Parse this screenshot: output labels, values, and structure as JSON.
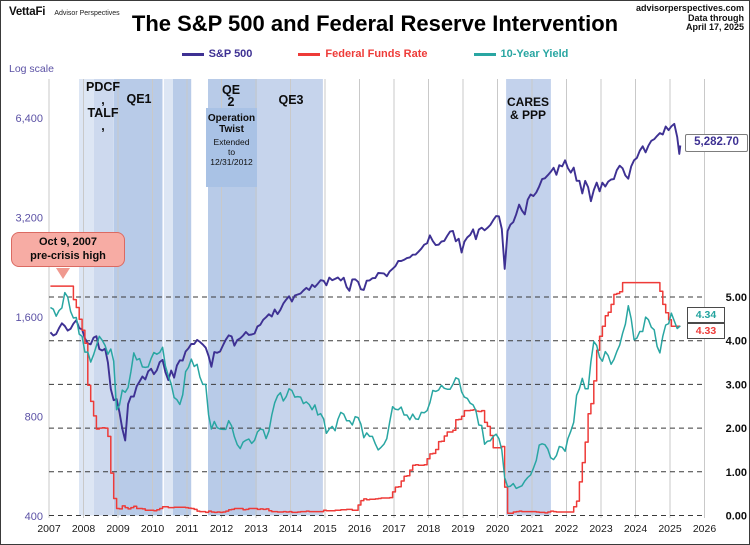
{
  "header": {
    "brand": "VettaFi",
    "brand_sub": "Advisor Perspectives",
    "attribution_line1": "advisorperspectives.com",
    "attribution_line2": "Data through",
    "attribution_line3": "April 17, 2025"
  },
  "annotations": {
    "precrisis_callout": "Oct 9, 2007\npre-crisis high",
    "sp_last_label": "5,282.70",
    "y10_last_label": "4.34",
    "ffr_last_label": "4.33",
    "pdcf_talf": "PDCF\n,\nTALF\n,",
    "qe1": "QE1",
    "qe2": "QE\n2",
    "qe3": "QE3",
    "cares": "CARES\n& PPP",
    "optwist_title": "Operation\nTwist",
    "optwist_sub": "Extended\nto\n12/31/2012"
  },
  "chart_data": {
    "type": "line",
    "title": "The S&P 500 and Federal Reserve Intervention",
    "left_axis": {
      "label": "Log scale",
      "scale": "log",
      "range": [
        400,
        8300
      ],
      "ticks": [
        [
          400,
          "400"
        ],
        [
          800,
          "800"
        ],
        [
          1600,
          "1,600"
        ],
        [
          3200,
          "3,200"
        ],
        [
          6400,
          "6,400"
        ]
      ]
    },
    "right_axis": {
      "range": [
        0.0,
        5.5
      ],
      "ticks": [
        [
          0,
          "0.00"
        ],
        [
          1,
          "1.00"
        ],
        [
          2,
          "2.00"
        ],
        [
          3,
          "3.00"
        ],
        [
          4,
          "4.00"
        ],
        [
          5,
          "5.00"
        ]
      ]
    },
    "x_axis": {
      "years": [
        2007,
        2008,
        2009,
        2010,
        2011,
        2012,
        2013,
        2014,
        2015,
        2016,
        2017,
        2018,
        2019,
        2020,
        2021,
        2022,
        2023,
        2024,
        2025,
        2026
      ]
    },
    "bands": [
      {
        "name": "pdcf-talf-early",
        "from": 2007.87,
        "to": 2008.3,
        "color": "#dde6f4"
      },
      {
        "name": "pdcf-talf-late",
        "from": 2008.3,
        "to": 2008.88,
        "color": "#cdd9ee"
      },
      {
        "name": "qe1",
        "from": 2008.88,
        "to": 2010.29,
        "color": "#b8cbe8"
      },
      {
        "name": "qe2-announce",
        "from": 2010.33,
        "to": 2010.59,
        "color": "#dde6f4"
      },
      {
        "name": "qe2",
        "from": 2010.59,
        "to": 2011.12,
        "color": "#b8cbe8"
      },
      {
        "name": "qe3",
        "from": 2012.71,
        "to": 2014.94,
        "color": "#c6d4ec"
      },
      {
        "name": "operation-twist",
        "from": 2011.61,
        "to": 2013.03,
        "color": "#b8cbe8"
      },
      {
        "name": "cares-ppp",
        "from": 2020.25,
        "to": 2021.55,
        "color": "#c3d2ec"
      }
    ],
    "series": [
      {
        "name": "S&P 500",
        "color": "#3e3193",
        "axis": "left",
        "step": false,
        "start": 2007,
        "monthly": [
          1438,
          1407,
          1421,
          1482,
          1531,
          1503,
          1455,
          1474,
          1527,
          1565,
          1481,
          1468,
          1379,
          1331,
          1323,
          1386,
          1400,
          1280,
          1267,
          1283,
          1166,
          969,
          896,
          903,
          826,
          735,
          677,
          873,
          919,
          919,
          987,
          1021,
          1057,
          1036,
          1096,
          1115,
          1074,
          1104,
          1169,
          1187,
          1089,
          1031,
          1102,
          1049,
          1141,
          1183,
          1181,
          1258,
          1286,
          1327,
          1326,
          1364,
          1345,
          1321,
          1292,
          1219,
          1131,
          1253,
          1247,
          1258,
          1312,
          1366,
          1408,
          1398,
          1310,
          1362,
          1379,
          1407,
          1441,
          1412,
          1416,
          1426,
          1498,
          1515,
          1569,
          1598,
          1631,
          1606,
          1686,
          1633,
          1682,
          1757,
          1806,
          1848,
          1783,
          1859,
          1872,
          1884,
          1924,
          1960,
          1931,
          2003,
          1972,
          2018,
          2068,
          2059,
          1995,
          2105,
          2068,
          2086,
          2107,
          2063,
          2104,
          1972,
          1920,
          2079,
          2080,
          2044,
          1940,
          1932,
          2060,
          2065,
          2097,
          2099,
          2174,
          2171,
          2168,
          2126,
          2199,
          2239,
          2279,
          2364,
          2363,
          2384,
          2412,
          2423,
          2470,
          2472,
          2519,
          2575,
          2648,
          2674,
          2824,
          2714,
          2641,
          2648,
          2705,
          2718,
          2816,
          2902,
          2914,
          2712,
          2760,
          2507,
          2704,
          2785,
          2834,
          2946,
          2752,
          2942,
          2980,
          2926,
          2977,
          3038,
          3141,
          3231,
          3226,
          2954,
          2237,
          2912,
          3044,
          3100,
          3271,
          3500,
          3363,
          3270,
          3622,
          3756,
          3714,
          3811,
          3973,
          4181,
          4204,
          4298,
          4395,
          4523,
          4308,
          4605,
          4567,
          4766,
          4516,
          4374,
          4530,
          4132,
          4132,
          3785,
          4130,
          3955,
          3586,
          3872,
          4080,
          3840,
          4077,
          3970,
          4109,
          4169,
          4180,
          4450,
          4589,
          4508,
          4288,
          4194,
          4568,
          4770,
          4846,
          5096,
          5254,
          5036,
          5278,
          5460,
          5522,
          5648,
          5762,
          5705,
          6032,
          5882,
          6041,
          6144,
          5612
        ],
        "tail": [
          [
            2025.27,
            4983
          ],
          [
            2025.3,
            5282.7
          ]
        ],
        "last_value": 5282.7
      },
      {
        "name": "Federal Funds Rate",
        "color": "#ee3b38",
        "axis": "right",
        "step": true,
        "start": 2007,
        "monthly": [
          5.25,
          5.25,
          5.25,
          5.25,
          5.25,
          5.25,
          5.25,
          5.25,
          4.94,
          4.76,
          4.49,
          4.24,
          3.94,
          2.98,
          2.61,
          2.28,
          1.98,
          2.0,
          2.01,
          2.0,
          1.81,
          0.97,
          0.39,
          0.16,
          0.15,
          0.22,
          0.18,
          0.15,
          0.18,
          0.21,
          0.16,
          0.16,
          0.15,
          0.12,
          0.12,
          0.12,
          0.11,
          0.13,
          0.16,
          0.2,
          0.2,
          0.18,
          0.18,
          0.19,
          0.19,
          0.19,
          0.19,
          0.18,
          0.17,
          0.16,
          0.14,
          0.1,
          0.09,
          0.09,
          0.07,
          0.1,
          0.08,
          0.07,
          0.08,
          0.07,
          0.08,
          0.1,
          0.13,
          0.14,
          0.16,
          0.16,
          0.16,
          0.13,
          0.14,
          0.16,
          0.16,
          0.16,
          0.14,
          0.15,
          0.14,
          0.15,
          0.11,
          0.09,
          0.09,
          0.08,
          0.08,
          0.09,
          0.08,
          0.09,
          0.07,
          0.07,
          0.08,
          0.09,
          0.09,
          0.1,
          0.09,
          0.09,
          0.09,
          0.09,
          0.09,
          0.12,
          0.11,
          0.11,
          0.11,
          0.12,
          0.12,
          0.13,
          0.13,
          0.14,
          0.14,
          0.12,
          0.12,
          0.24,
          0.34,
          0.38,
          0.36,
          0.37,
          0.37,
          0.38,
          0.39,
          0.4,
          0.4,
          0.4,
          0.41,
          0.54,
          0.65,
          0.66,
          0.79,
          0.9,
          0.91,
          1.04,
          1.15,
          1.16,
          1.15,
          1.15,
          1.16,
          1.3,
          1.41,
          1.42,
          1.51,
          1.69,
          1.7,
          1.82,
          1.91,
          1.91,
          1.95,
          2.19,
          2.2,
          2.27,
          2.4,
          2.4,
          2.41,
          2.42,
          2.39,
          2.38,
          2.4,
          2.13,
          2.04,
          1.83,
          1.55,
          1.55,
          1.55,
          1.58,
          0.65,
          0.05,
          0.05,
          0.08,
          0.09,
          0.1,
          0.09,
          0.09,
          0.09,
          0.09,
          0.09,
          0.08,
          0.07,
          0.07,
          0.06,
          0.08,
          0.1,
          0.09,
          0.08,
          0.08,
          0.08,
          0.08,
          0.08,
          0.08,
          0.2,
          0.33,
          0.77,
          1.21,
          1.68,
          2.33,
          2.56,
          3.08,
          3.78,
          4.1,
          4.33,
          4.57,
          4.65,
          4.83,
          5.06,
          5.08,
          5.12,
          5.33,
          5.33,
          5.33,
          5.33,
          5.33,
          5.33,
          5.33,
          5.33,
          5.33,
          5.33,
          5.33,
          5.33,
          5.33,
          5.13,
          4.83,
          4.64,
          4.48,
          4.33,
          4.33,
          4.33
        ],
        "tail": [
          [
            2025.3,
            4.33
          ]
        ],
        "last_value": 4.33
      },
      {
        "name": "10-Year Yield",
        "color": "#29a6a2",
        "axis": "right",
        "step": false,
        "start": 2007,
        "monthly": [
          4.76,
          4.72,
          4.56,
          4.69,
          4.75,
          5.1,
          5.0,
          4.67,
          4.52,
          4.53,
          4.15,
          4.1,
          3.74,
          3.74,
          3.51,
          3.68,
          3.88,
          4.1,
          4.01,
          3.89,
          3.69,
          3.81,
          3.53,
          2.42,
          2.52,
          2.87,
          2.82,
          2.93,
          3.29,
          3.72,
          3.56,
          3.59,
          3.4,
          3.39,
          3.4,
          3.59,
          3.73,
          3.69,
          3.73,
          3.85,
          3.42,
          3.2,
          3.01,
          2.7,
          2.65,
          2.54,
          2.76,
          3.29,
          3.39,
          3.58,
          3.41,
          3.46,
          3.17,
          3.0,
          3.0,
          2.3,
          1.98,
          2.15,
          2.01,
          1.98,
          1.97,
          1.97,
          2.17,
          2.05,
          1.8,
          1.62,
          1.53,
          1.68,
          1.72,
          1.75,
          1.65,
          1.72,
          1.91,
          1.98,
          1.96,
          1.76,
          1.93,
          2.3,
          2.58,
          2.74,
          2.81,
          2.62,
          2.72,
          2.9,
          2.86,
          2.71,
          2.72,
          2.71,
          2.56,
          2.6,
          2.54,
          2.42,
          2.53,
          2.3,
          2.33,
          2.21,
          1.88,
          1.98,
          2.04,
          1.94,
          2.2,
          2.36,
          2.32,
          2.17,
          2.17,
          2.07,
          2.26,
          2.24,
          2.09,
          1.78,
          1.89,
          1.81,
          1.81,
          1.64,
          1.5,
          1.56,
          1.63,
          1.76,
          2.14,
          2.49,
          2.43,
          2.42,
          2.48,
          2.3,
          2.3,
          2.19,
          2.32,
          2.21,
          2.2,
          2.36,
          2.35,
          2.4,
          2.58,
          2.86,
          2.84,
          2.87,
          2.98,
          2.91,
          2.89,
          2.89,
          3.0,
          3.15,
          3.12,
          2.83,
          2.71,
          2.68,
          2.57,
          2.53,
          2.4,
          2.07,
          2.06,
          1.63,
          1.7,
          1.71,
          1.81,
          1.86,
          1.76,
          1.5,
          0.87,
          0.66,
          0.67,
          0.73,
          0.62,
          0.65,
          0.68,
          0.79,
          0.87,
          0.93,
          1.08,
          1.26,
          1.61,
          1.64,
          1.62,
          1.52,
          1.32,
          1.28,
          1.37,
          1.58,
          1.56,
          1.47,
          1.76,
          1.93,
          2.13,
          2.75,
          2.9,
          3.14,
          2.9,
          2.9,
          3.52,
          3.98,
          3.89,
          3.62,
          3.53,
          3.75,
          3.66,
          3.46,
          3.57,
          3.75,
          3.9,
          4.17,
          4.38,
          4.8,
          4.5,
          4.02,
          4.06,
          4.21,
          4.21,
          4.54,
          4.48,
          4.31,
          4.25,
          3.87,
          3.72,
          4.1,
          4.36,
          4.39,
          4.63,
          4.45,
          4.28
        ],
        "tail": [
          [
            2025.3,
            4.34
          ]
        ],
        "last_value": 4.34
      }
    ],
    "grid": {
      "vertical_color": "#c9c9c9",
      "dashed_color": "#3a3a3a"
    }
  }
}
